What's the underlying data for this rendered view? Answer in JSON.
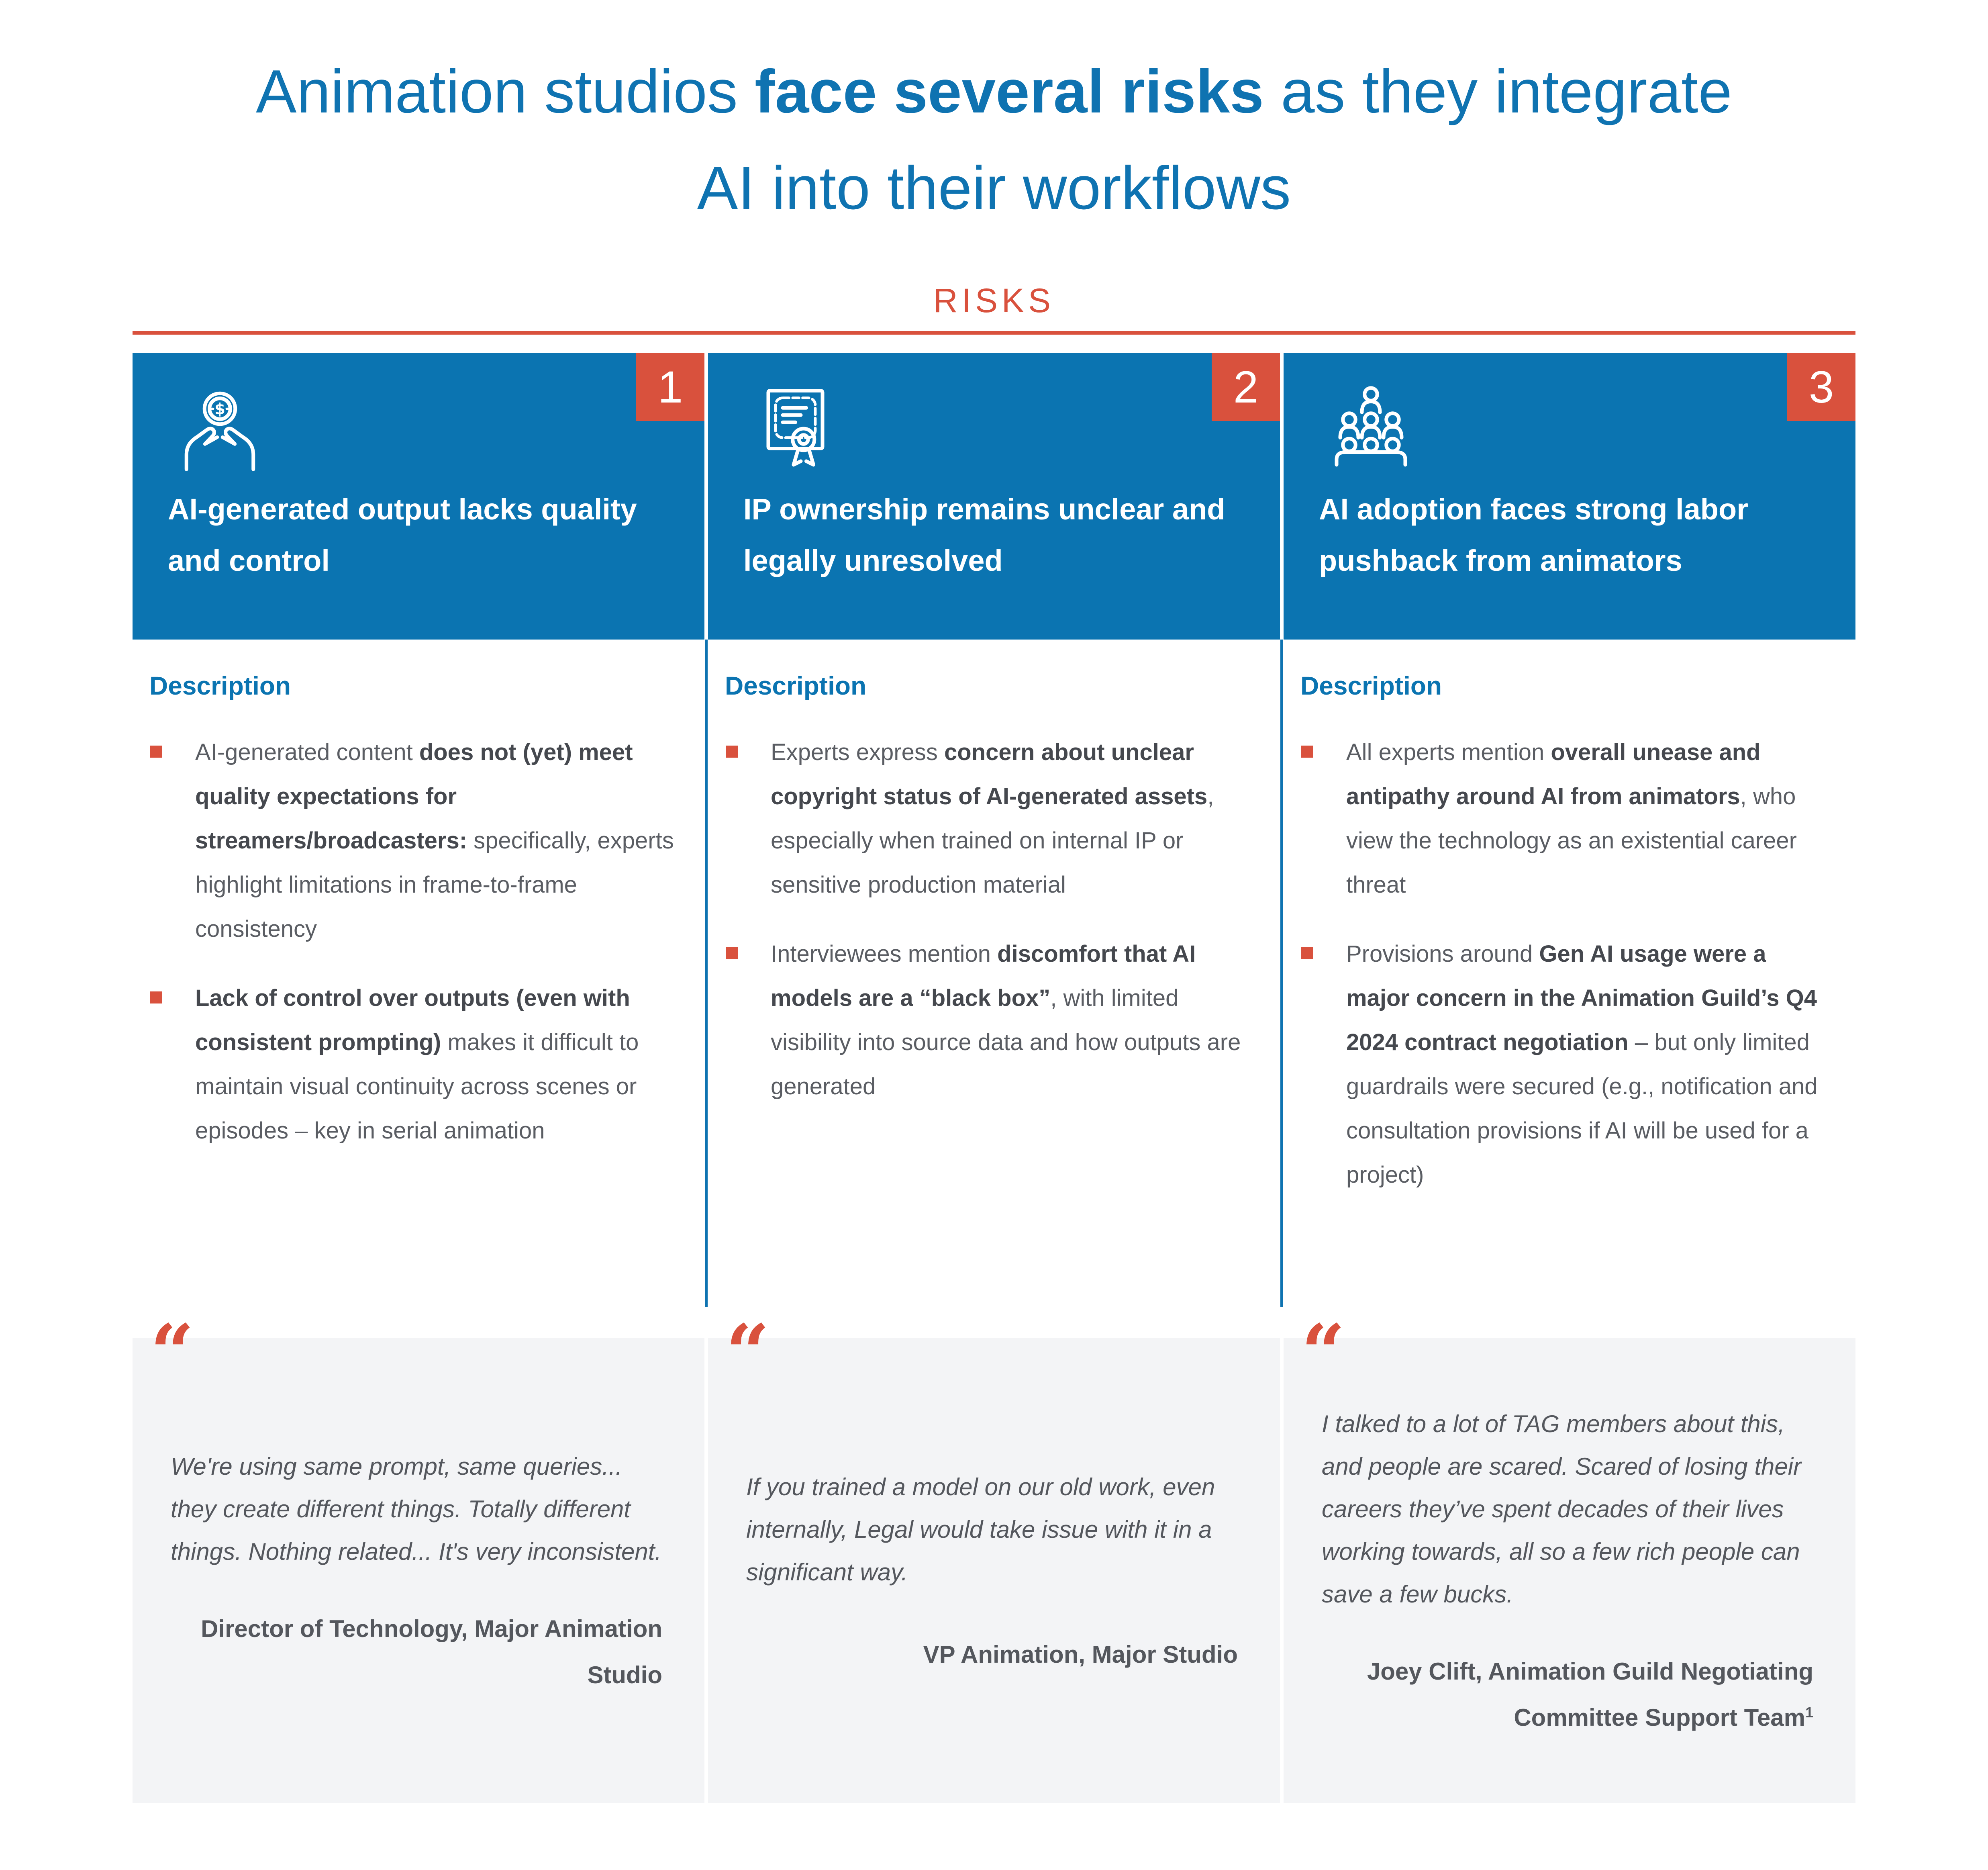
{
  "title": {
    "line1_pre": "Animation studios ",
    "line1_bold": "face several risks",
    "line1_post": " as they integrate",
    "line2": "AI into their workflows"
  },
  "section_label": "RISKS",
  "colors": {
    "blue": "#0b74b1",
    "red": "#d9513d",
    "body_gray": "#5a5d63",
    "quote_bg": "#f3f4f6"
  },
  "columns": [
    {
      "number": "1",
      "icon": "hands-coin-icon",
      "header": "AI-generated output lacks quality and control",
      "description_label": "Description",
      "bullets": [
        [
          {
            "t": "AI-generated content ",
            "b": false
          },
          {
            "t": "does not (yet) meet quality expectations for streamers/broadcasters:",
            "b": true
          },
          {
            "t": " specifically, experts highlight limitations in frame-to-frame consistency",
            "b": false
          }
        ],
        [
          {
            "t": "Lack of control over outputs (even with consistent prompting)",
            "b": true
          },
          {
            "t": " makes it difficult to maintain visual continuity across scenes or episodes – key in serial animation",
            "b": false
          }
        ]
      ],
      "quote_mark": "“",
      "quote": "We're using same prompt, same queries... they create different things. Totally different things. Nothing related... It's very inconsistent.",
      "attribution": "Director of Technology, Major Animation Studio",
      "attribution_sup": ""
    },
    {
      "number": "2",
      "icon": "certificate-icon",
      "header": "IP ownership remains unclear and legally unresolved",
      "description_label": "Description",
      "bullets": [
        [
          {
            "t": "Experts express ",
            "b": false
          },
          {
            "t": "concern about unclear copyright status of AI-generated assets",
            "b": true
          },
          {
            "t": ", especially when trained on internal IP or sensitive production material",
            "b": false
          }
        ],
        [
          {
            "t": "Interviewees mention ",
            "b": false
          },
          {
            "t": "discomfort that AI models are a “black box”",
            "b": true
          },
          {
            "t": ", with limited visibility into source data and how outputs are generated",
            "b": false
          }
        ]
      ],
      "quote_mark": "“",
      "quote": "If you trained a model on our old work, even internally, Legal would take issue with it in a significant way.",
      "attribution": "VP Animation, Major Studio",
      "attribution_sup": ""
    },
    {
      "number": "3",
      "icon": "people-group-icon",
      "header": "AI adoption faces strong labor pushback from animators",
      "description_label": "Description",
      "bullets": [
        [
          {
            "t": "All experts mention ",
            "b": false
          },
          {
            "t": "overall unease and antipathy around AI from animators",
            "b": true
          },
          {
            "t": ", who view the technology as an existential career threat",
            "b": false
          }
        ],
        [
          {
            "t": "Provisions around ",
            "b": false
          },
          {
            "t": "Gen AI usage were a major concern in the Animation Guild’s Q4 2024 contract negotiation",
            "b": true
          },
          {
            "t": " – but only limited guardrails were secured (e.g., notification and consultation provisions if AI will be used for a project)",
            "b": false
          }
        ]
      ],
      "quote_mark": "“",
      "quote": "I talked to a lot of TAG members about this, and people are scared. Scared of losing their careers they’ve spent decades of their lives working towards, all so a few rich people can save a few bucks.",
      "attribution": "Joey Clift, Animation Guild Negotiating Committee Support Team",
      "attribution_sup": "1"
    }
  ]
}
